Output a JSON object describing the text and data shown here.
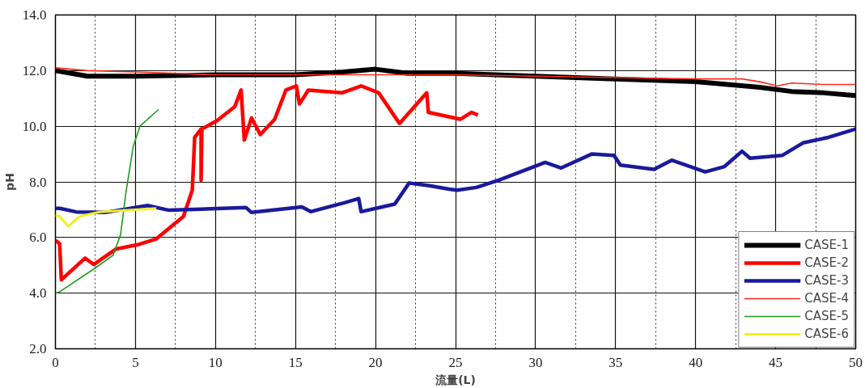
{
  "chart_data": {
    "type": "line",
    "xlabel": "流量(L)",
    "ylabel": "pH",
    "xlim": [
      0,
      50
    ],
    "ylim": [
      2,
      14
    ],
    "xticks": [
      0,
      5,
      10,
      15,
      20,
      25,
      30,
      35,
      40,
      45,
      50
    ],
    "yticks": [
      {
        "value": 2,
        "label": "2.0"
      },
      {
        "value": 4,
        "label": "4.0"
      },
      {
        "value": 6,
        "label": "6.0"
      },
      {
        "value": 8,
        "label": "8.0"
      },
      {
        "value": 10,
        "label": "10.0"
      },
      {
        "value": 12,
        "label": "12.0"
      },
      {
        "value": 14,
        "label": "14.0"
      }
    ],
    "grid": true,
    "legend": "bottom right",
    "marker": "none",
    "line_style": "solid",
    "series": [
      {
        "name": "CASE-1",
        "color": "#000000",
        "x": [
          0,
          1,
          2,
          5,
          10,
          15,
          18,
          20,
          22,
          25,
          30,
          35,
          40,
          42,
          44,
          46,
          48,
          50
        ],
        "values": [
          12.0,
          11.9,
          11.8,
          11.8,
          11.85,
          11.85,
          11.95,
          12.05,
          11.9,
          11.9,
          11.8,
          11.7,
          11.6,
          11.5,
          11.4,
          11.25,
          11.2,
          11.1
        ]
      },
      {
        "name": "CASE-2",
        "color": "#ff0000",
        "x": [
          0.0,
          0.26,
          0.37,
          1.85,
          2.4,
          3.8,
          5.2,
          6.3,
          8.0,
          8.55,
          8.7,
          9.1,
          9.1,
          9.15,
          10.1,
          11.2,
          11.6,
          11.8,
          12.25,
          12.8,
          13.7,
          14.4,
          15.05,
          15.25,
          15.8,
          17.9,
          19.1,
          20.2,
          21.2,
          21.5,
          23.2,
          23.3,
          25.3,
          26.0,
          26.4
        ],
        "values": [
          5.9,
          5.78,
          4.48,
          5.26,
          5.03,
          5.59,
          5.75,
          5.95,
          6.76,
          7.7,
          9.6,
          9.9,
          8.06,
          9.9,
          10.2,
          10.7,
          11.3,
          9.5,
          10.3,
          9.7,
          10.25,
          11.3,
          11.45,
          10.8,
          11.3,
          11.2,
          11.45,
          11.2,
          10.35,
          10.1,
          11.2,
          10.5,
          10.25,
          10.5,
          10.4
        ]
      },
      {
        "name": "CASE-3",
        "color": "#1a1a9c",
        "x": [
          0.0,
          0.27,
          1.3,
          3.1,
          5.75,
          7.1,
          11.9,
          12.25,
          15.4,
          15.95,
          18.05,
          18.95,
          19.1,
          21.2,
          22.1,
          23.3,
          24.6,
          25.1,
          26.3,
          27.7,
          30.6,
          31.6,
          33.5,
          34.9,
          35.3,
          37.4,
          38.5,
          40.6,
          41.8,
          42.9,
          43.4,
          45.4,
          46.7,
          48.3,
          50
        ],
        "values": [
          7.05,
          7.05,
          6.92,
          6.9,
          7.15,
          6.98,
          7.08,
          6.9,
          7.1,
          6.93,
          7.25,
          7.4,
          6.93,
          7.2,
          7.96,
          7.87,
          7.74,
          7.7,
          7.8,
          8.06,
          8.7,
          8.5,
          9.0,
          8.95,
          8.6,
          8.45,
          8.78,
          8.36,
          8.55,
          9.1,
          8.85,
          8.95,
          9.4,
          9.6,
          9.9
        ]
      },
      {
        "name": "CASE-4",
        "color": "#ff2a1a",
        "x": [
          0,
          2,
          5,
          10,
          15,
          20,
          25,
          30,
          35,
          40,
          42.9,
          44,
          45.1,
          46,
          48,
          50
        ],
        "values": [
          12.1,
          12.0,
          11.95,
          11.85,
          11.85,
          11.85,
          11.85,
          11.8,
          11.75,
          11.7,
          11.7,
          11.6,
          11.45,
          11.55,
          11.5,
          11.5
        ]
      },
      {
        "name": "CASE-5",
        "color": "#1e9a1e",
        "x": [
          0.0,
          0.27,
          2.4,
          3.6,
          4.07,
          4.4,
          4.86,
          5.28,
          6.44
        ],
        "values": [
          4.0,
          4.05,
          4.87,
          5.36,
          6.1,
          7.6,
          9.27,
          10.0,
          10.6
        ]
      },
      {
        "name": "CASE-6",
        "color": "#f0f020",
        "x": [
          0.0,
          0.27,
          0.8,
          1.5,
          2.75,
          6.3
        ],
        "values": [
          6.8,
          6.76,
          6.4,
          6.76,
          6.92,
          7.05
        ]
      }
    ]
  }
}
